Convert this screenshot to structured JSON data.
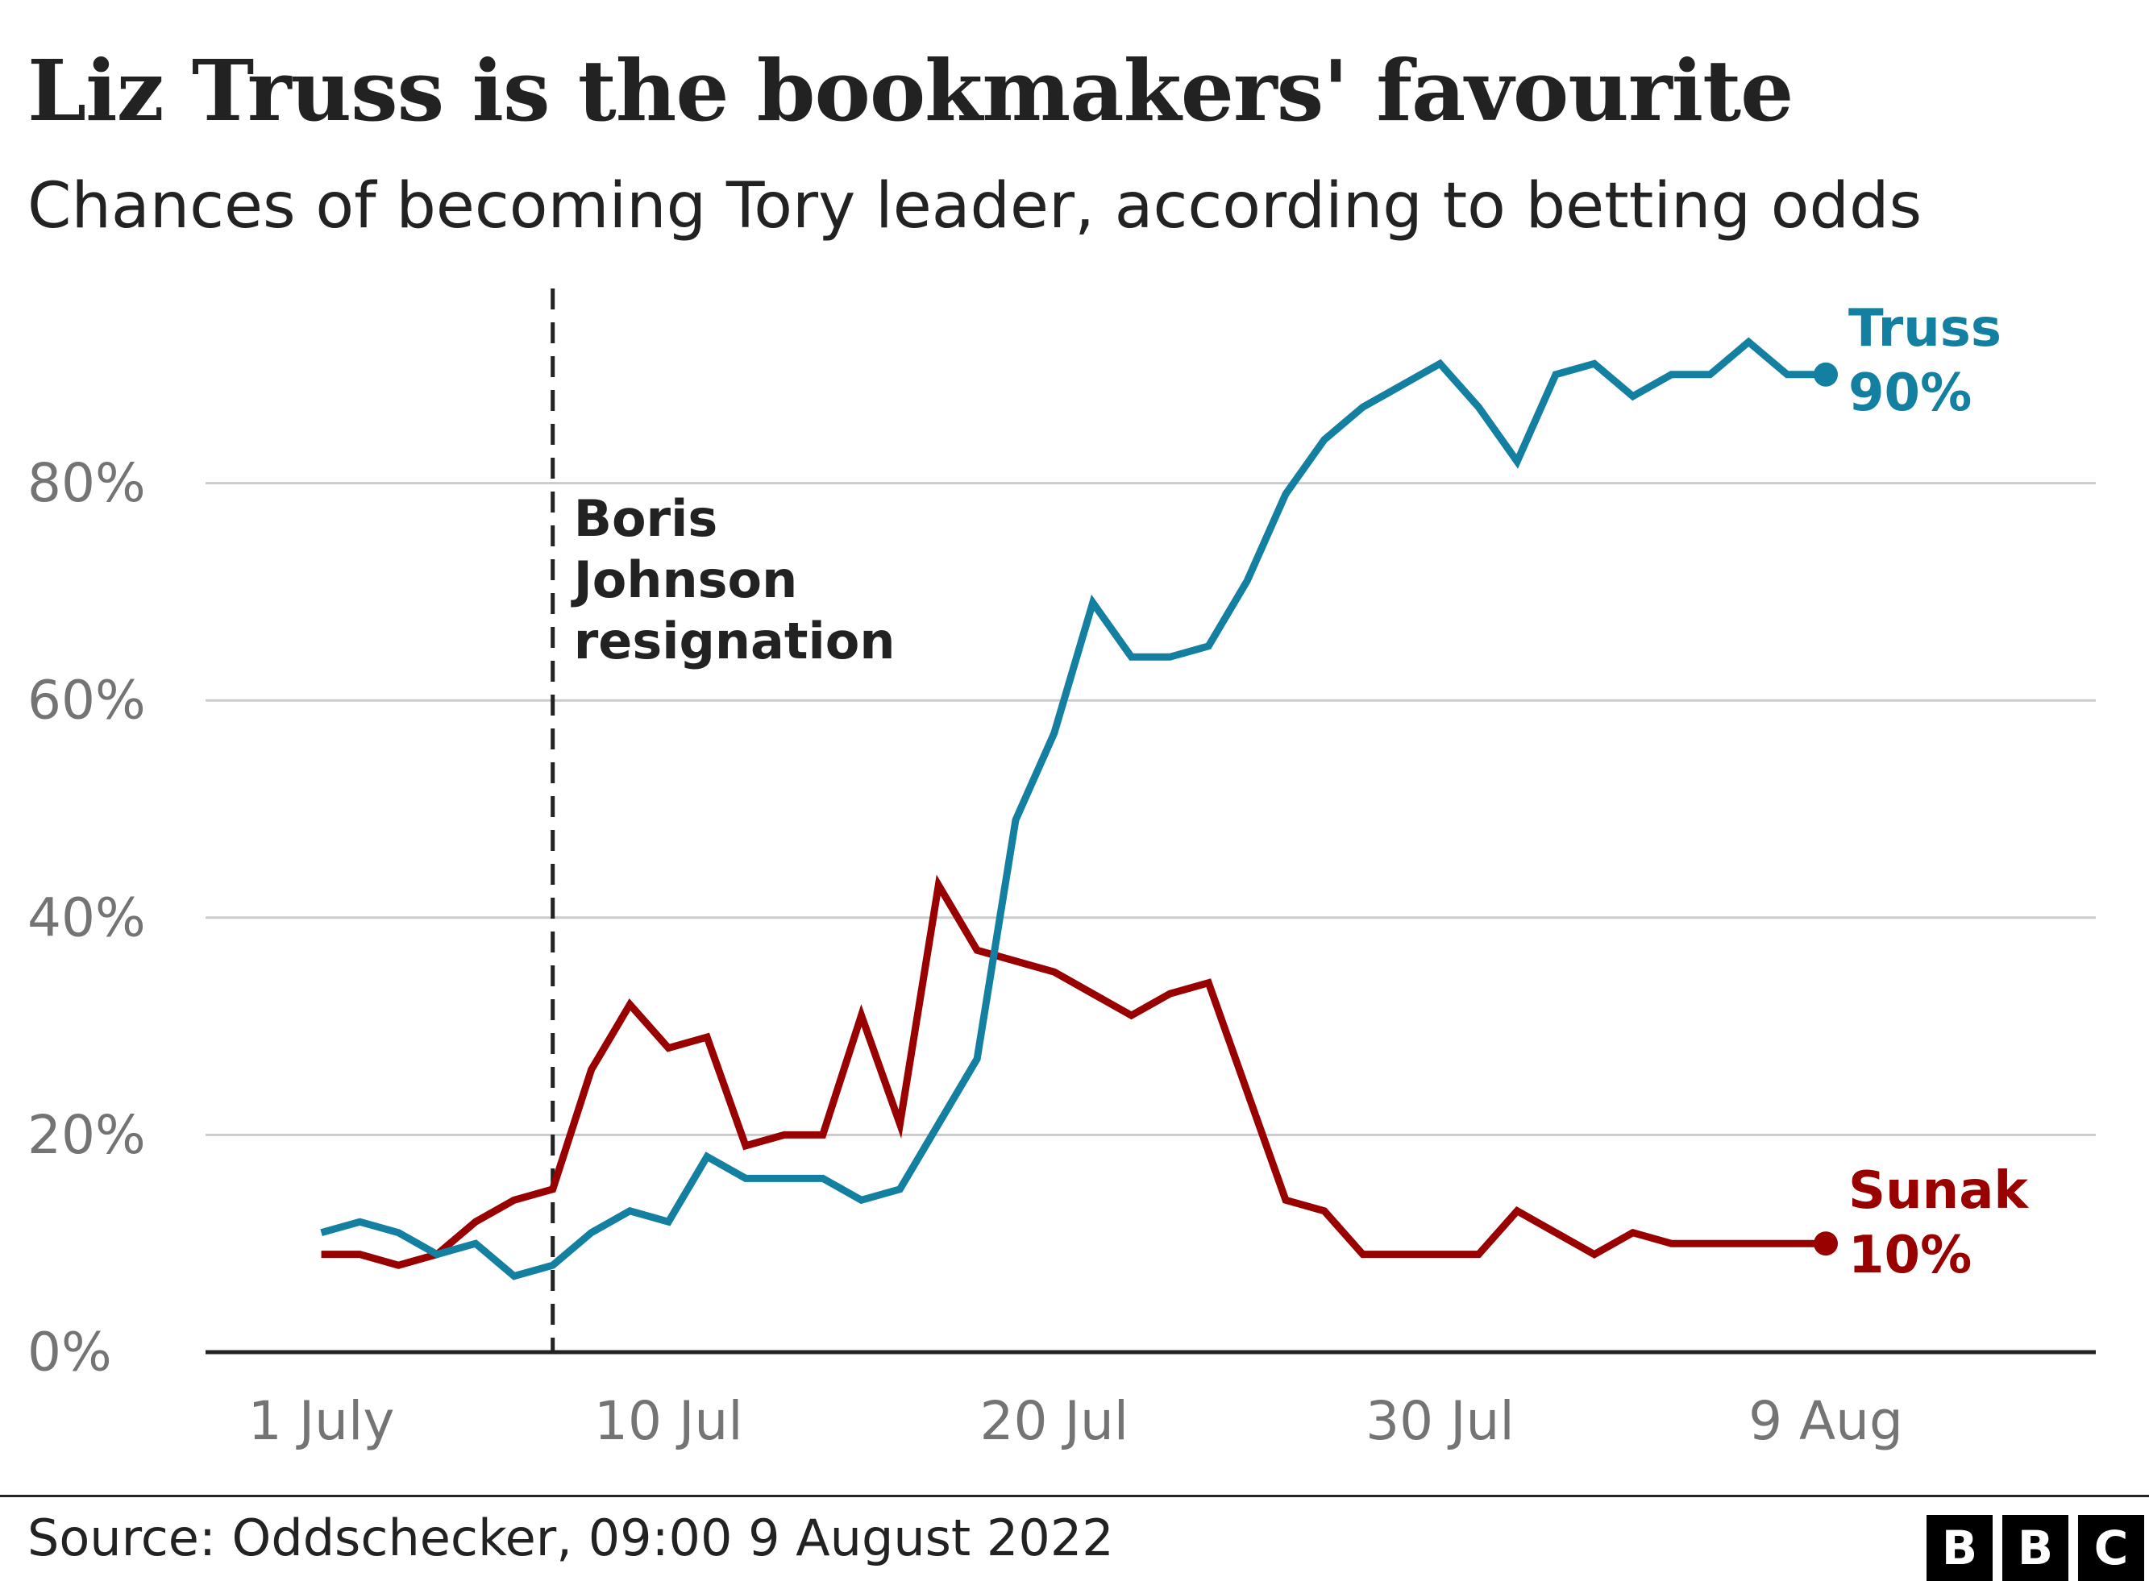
{
  "title": "Liz Truss is the bookmakers' favourite",
  "subtitle": "Chances of becoming Tory leader, according to betting odds",
  "source": "Source: Oddschecker, 09:00 9 August 2022",
  "logo": [
    "B",
    "B",
    "C"
  ],
  "annotation": {
    "date": "2022-07-07",
    "lines": [
      "Boris",
      "Johnson",
      "resignation"
    ]
  },
  "colors": {
    "truss": "#1380A1",
    "sunak": "#990000",
    "gridline": "#cbcbcb",
    "axis_text": "#747474",
    "text": "#222222"
  },
  "chart_data": {
    "type": "line",
    "title": "Liz Truss is the bookmakers' favourite",
    "subtitle": "Chances of becoming Tory leader, according to betting odds",
    "xlabel": "",
    "ylabel": "",
    "x_tick_labels": [
      "1 July",
      "10 Jul",
      "20 Jul",
      "30 Jul",
      "9 Aug"
    ],
    "x_tick_dates": [
      "2022-07-01",
      "2022-07-10",
      "2022-07-20",
      "2022-07-30",
      "2022-08-09"
    ],
    "xlim": [
      "2022-06-28",
      "2022-08-16"
    ],
    "ylim": [
      0,
      100
    ],
    "y_ticks": [
      0,
      20,
      40,
      60,
      80
    ],
    "y_tick_labels": [
      "0%",
      "20%",
      "40%",
      "60%",
      "80%"
    ],
    "grid": true,
    "x": [
      "2022-07-01",
      "2022-07-02",
      "2022-07-03",
      "2022-07-04",
      "2022-07-05",
      "2022-07-06",
      "2022-07-07",
      "2022-07-08",
      "2022-07-09",
      "2022-07-10",
      "2022-07-11",
      "2022-07-12",
      "2022-07-13",
      "2022-07-14",
      "2022-07-15",
      "2022-07-16",
      "2022-07-17",
      "2022-07-18",
      "2022-07-19",
      "2022-07-20",
      "2022-07-21",
      "2022-07-22",
      "2022-07-23",
      "2022-07-24",
      "2022-07-25",
      "2022-07-26",
      "2022-07-27",
      "2022-07-28",
      "2022-07-29",
      "2022-07-30",
      "2022-07-31",
      "2022-08-01",
      "2022-08-02",
      "2022-08-03",
      "2022-08-04",
      "2022-08-05",
      "2022-08-06",
      "2022-08-07",
      "2022-08-08",
      "2022-08-09"
    ],
    "series": [
      {
        "name": "Truss",
        "end_label": "90%",
        "values": [
          11,
          12,
          11,
          9,
          10,
          7,
          8,
          11,
          13,
          12,
          18,
          16,
          16,
          16,
          14,
          15,
          21,
          27,
          49,
          57,
          69,
          64,
          64,
          65,
          71,
          79,
          84,
          87,
          89,
          91,
          87,
          82,
          90,
          91,
          88,
          90,
          90,
          93,
          90,
          90
        ]
      },
      {
        "name": "Sunak",
        "end_label": "10%",
        "values": [
          9,
          9,
          8,
          9,
          12,
          14,
          15,
          26,
          32,
          28,
          29,
          19,
          20,
          20,
          31,
          21,
          43,
          37,
          36,
          35,
          33,
          31,
          33,
          34,
          24,
          14,
          13,
          9,
          9,
          9,
          9,
          13,
          11,
          9,
          11,
          10,
          10,
          10,
          10,
          10
        ]
      }
    ]
  }
}
